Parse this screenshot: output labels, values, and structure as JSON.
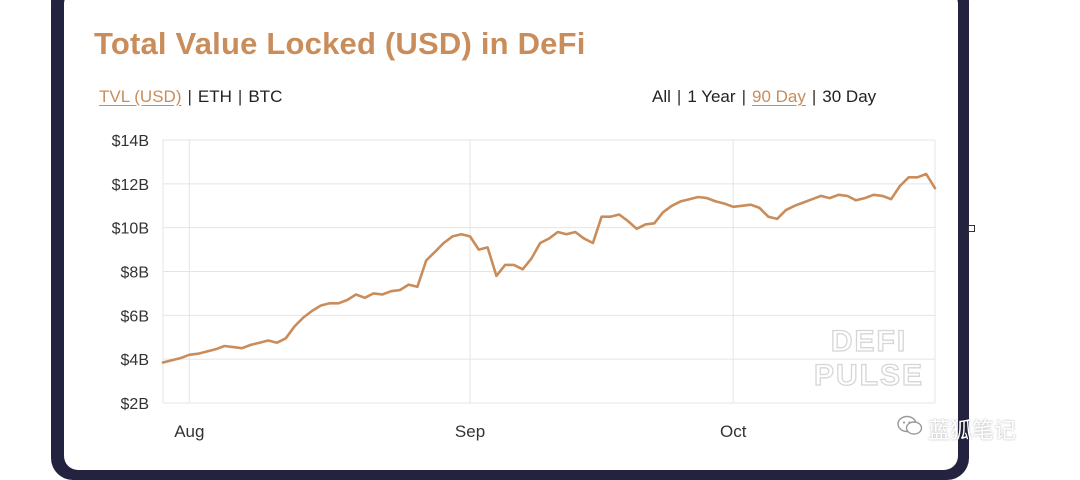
{
  "chart_data": {
    "type": "line",
    "title": "Total Value Locked (USD) in DeFi",
    "y_ticks": [
      "$14B",
      "$12B",
      "$10B",
      "$8B",
      "$6B",
      "$4B",
      "$2B"
    ],
    "y_tick_values": [
      14,
      12,
      10,
      8,
      6,
      4,
      2
    ],
    "ylim": [
      2,
      14
    ],
    "x_ticks": [
      {
        "label": "Aug",
        "day": 3
      },
      {
        "label": "Sep",
        "day": 35
      },
      {
        "label": "Oct",
        "day": 65
      }
    ],
    "xlim": [
      0,
      88
    ],
    "grid": true,
    "series": [
      {
        "color": "#c98d5b",
        "x": [
          0,
          1,
          2,
          3,
          4,
          5,
          6,
          7,
          8,
          9,
          10,
          11,
          12,
          13,
          14,
          15,
          16,
          17,
          18,
          19,
          20,
          21,
          22,
          23,
          24,
          25,
          26,
          27,
          28,
          29,
          30,
          31,
          32,
          33,
          34,
          35,
          36,
          37,
          38,
          39,
          40,
          41,
          42,
          43,
          44,
          45,
          46,
          47,
          48,
          49,
          50,
          51,
          52,
          53,
          54,
          55,
          56,
          57,
          58,
          59,
          60,
          61,
          62,
          63,
          64,
          65,
          66,
          67,
          68,
          69,
          70,
          71,
          72,
          73,
          74,
          75,
          76,
          77,
          78,
          79,
          80,
          81,
          82,
          83,
          84,
          85,
          86,
          87,
          88
        ],
        "values": [
          3.85,
          3.95,
          4.05,
          4.2,
          4.25,
          4.35,
          4.45,
          4.6,
          4.55,
          4.5,
          4.65,
          4.75,
          4.85,
          4.75,
          4.95,
          5.5,
          5.9,
          6.2,
          6.45,
          6.55,
          6.55,
          6.7,
          6.95,
          6.8,
          7.0,
          6.95,
          7.1,
          7.15,
          7.4,
          7.3,
          8.5,
          8.9,
          9.3,
          9.6,
          9.7,
          9.6,
          9.0,
          9.1,
          7.8,
          8.3,
          8.3,
          8.1,
          8.6,
          9.3,
          9.5,
          9.8,
          9.7,
          9.8,
          9.5,
          9.3,
          10.5,
          10.5,
          10.6,
          10.3,
          9.95,
          10.15,
          10.2,
          10.7,
          11.0,
          11.2,
          11.3,
          11.4,
          11.35,
          11.2,
          11.1,
          10.95,
          11.0,
          11.05,
          10.9,
          10.5,
          10.4,
          10.8,
          11.0,
          11.15,
          11.3,
          11.45,
          11.35,
          11.5,
          11.45,
          11.25,
          11.35,
          11.5,
          11.45,
          11.3,
          11.9,
          12.3,
          12.3,
          12.45,
          11.8
        ]
      }
    ]
  },
  "controls": {
    "metric_options": [
      "TVL (USD)",
      "ETH",
      "BTC"
    ],
    "metric_selected": "TVL (USD)",
    "range_options": [
      "All",
      "1 Year",
      "90 Day",
      "30 Day"
    ],
    "range_selected": "90 Day"
  },
  "watermarks": {
    "defi_pulse_line1": "DEFI",
    "defi_pulse_line2": "PULSE",
    "wechat_label": "蓝狐笔记"
  },
  "colors": {
    "accent": "#c98d5b",
    "frame": "#24233f",
    "grid": "#e4e4e4"
  }
}
